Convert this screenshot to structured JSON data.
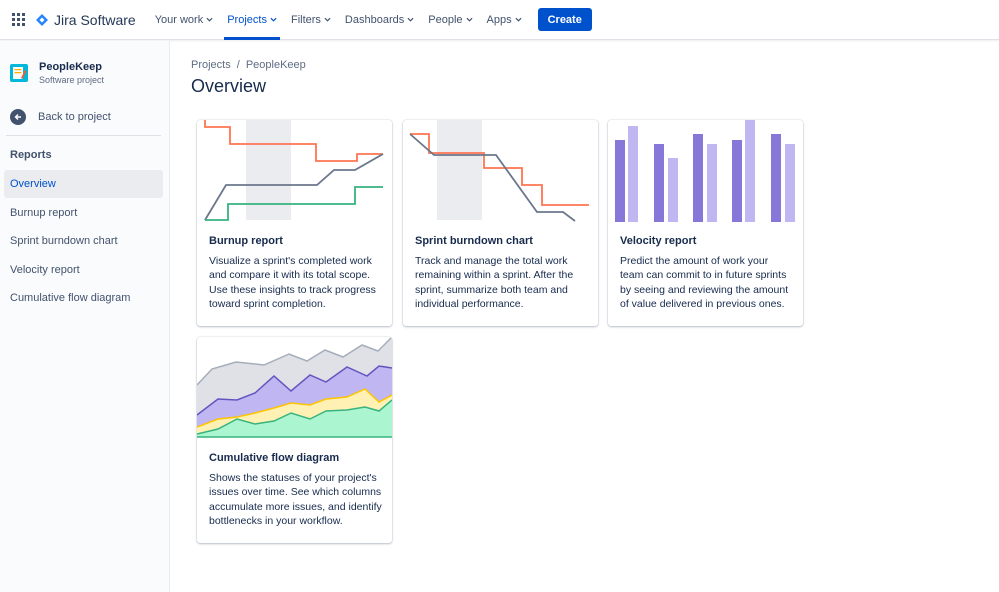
{
  "header": {
    "logo_text": "Jira Software",
    "nav": [
      {
        "label": "Your work"
      },
      {
        "label": "Projects"
      },
      {
        "label": "Filters"
      },
      {
        "label": "Dashboards"
      },
      {
        "label": "People"
      },
      {
        "label": "Apps"
      }
    ],
    "create_label": "Create",
    "brand_color": "#0052cc"
  },
  "sidebar": {
    "project_name": "PeopleKeep",
    "project_type": "Software project",
    "back_label": "Back to project",
    "section_label": "Reports",
    "items": [
      {
        "label": "Overview"
      },
      {
        "label": "Burnup report"
      },
      {
        "label": "Sprint burndown chart"
      },
      {
        "label": "Velocity report"
      },
      {
        "label": "Cumulative flow diagram"
      }
    ]
  },
  "breadcrumb": {
    "root": "Projects",
    "separator": "/",
    "current": "PeopleKeep"
  },
  "page_title": "Overview",
  "cards": [
    {
      "title": "Burnup report",
      "description": "Visualize a sprint's completed work and compare it with its total scope. Use these insights to track progress toward sprint completion."
    },
    {
      "title": "Sprint burndown chart",
      "description": "Track and manage the total work remaining within a sprint. After the sprint, summarize both team and individual performance."
    },
    {
      "title": "Velocity report",
      "description": "Predict the amount of work your team can commit to in future sprints by seeing and reviewing the amount of value delivered in previous ones."
    },
    {
      "title": "Cumulative flow diagram",
      "description": "Shows the statuses of your project's issues over time. See which columns accumulate more issues, and identify bottlenecks in your workflow."
    }
  ],
  "colors": {
    "scope_line": "#ff7452",
    "progress_line": "#6b778c",
    "done_line": "#36b37e",
    "velocity_dark": "#8777d9",
    "velocity_light": "#c0b6f2"
  }
}
